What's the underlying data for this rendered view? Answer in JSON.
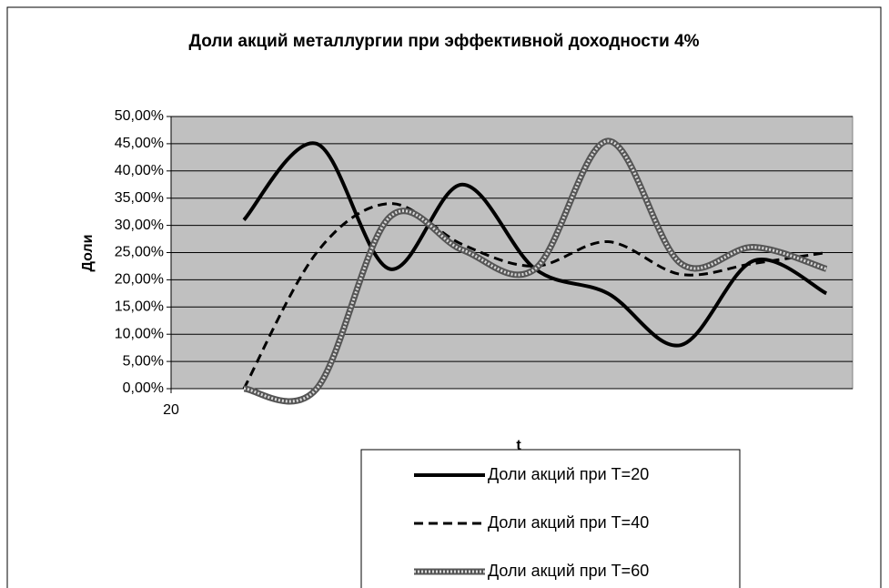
{
  "chart_data": {
    "type": "line",
    "title": "Доли акций металлургии при эффективной доходности 4%",
    "y_label": "Доли",
    "x_label": "t",
    "x": [
      21,
      22,
      23,
      24,
      25,
      26,
      27,
      28,
      29
    ],
    "xlim": [
      20,
      29.36
    ],
    "xticks": [
      20
    ],
    "ylim": [
      0,
      50
    ],
    "yticks": [
      {
        "value": 0,
        "label": "0,00%"
      },
      {
        "value": 5,
        "label": "5,00%"
      },
      {
        "value": 10,
        "label": "10,00%"
      },
      {
        "value": 15,
        "label": "15,00%"
      },
      {
        "value": 20,
        "label": "20,00%"
      },
      {
        "value": 25,
        "label": "25,00%"
      },
      {
        "value": 30,
        "label": "30,00%"
      },
      {
        "value": 35,
        "label": "35,00%"
      },
      {
        "value": 40,
        "label": "40,00%"
      },
      {
        "value": 45,
        "label": "45,00%"
      },
      {
        "value": 50,
        "label": "50,00%"
      }
    ],
    "grid": true,
    "plot_background": "#c0c0c0",
    "legend": "bottom",
    "series": [
      {
        "name": "Доли акций при T=20",
        "color": "#000000",
        "style": "solid",
        "values": [
          31,
          45,
          22,
          37.5,
          22,
          17.5,
          8,
          23.5,
          17.5
        ]
      },
      {
        "name": "Доли акций при T=40",
        "color": "#000000",
        "style": "dashed",
        "values": [
          0,
          25,
          34,
          26.5,
          22.5,
          27,
          21,
          23,
          25
        ]
      },
      {
        "name": "Доли акций при T=60",
        "color": "#555555",
        "style": "patterned",
        "values": [
          0,
          0,
          31.5,
          25.5,
          22,
          45.5,
          23,
          26,
          22
        ]
      }
    ]
  }
}
